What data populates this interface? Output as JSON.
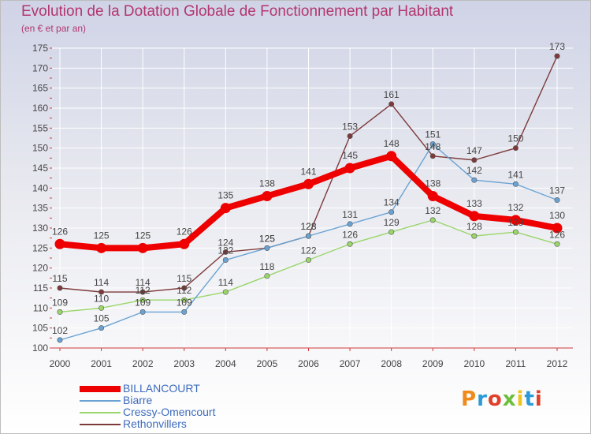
{
  "chart_data": {
    "type": "line",
    "title": "Evolution de la Dotation Globale de Fonctionnement par Habitant",
    "subtitle": "(en € et par an)",
    "xlabel": "",
    "ylabel": "",
    "categories": [
      "2000",
      "2001",
      "2002",
      "2003",
      "2004",
      "2005",
      "2006",
      "2007",
      "2008",
      "2009",
      "2010",
      "2011",
      "2012"
    ],
    "ylim": [
      100,
      175
    ],
    "yticks": [
      100,
      105,
      110,
      115,
      120,
      125,
      130,
      135,
      140,
      145,
      150,
      155,
      160,
      165,
      170,
      175
    ],
    "series": [
      {
        "name": "BILLANCOURT",
        "color": "#ee0000",
        "values": [
          126,
          125,
          125,
          126,
          135,
          138,
          141,
          145,
          148,
          138,
          133,
          132,
          130
        ]
      },
      {
        "name": "Biarre",
        "color": "#6aa3d3",
        "values": [
          102,
          105,
          109,
          109,
          122,
          125,
          128,
          131,
          134,
          151,
          142,
          141,
          137
        ]
      },
      {
        "name": "Cressy-Omencourt",
        "color": "#9ad66a",
        "values": [
          109,
          110,
          112,
          112,
          114,
          118,
          122,
          126,
          129,
          132,
          128,
          129,
          126
        ]
      },
      {
        "name": "Rethonvillers",
        "color": "#7d3a3a",
        "values": [
          115,
          114,
          114,
          115,
          124,
          125,
          128,
          153,
          161,
          148,
          147,
          150,
          173
        ]
      }
    ]
  },
  "logo": {
    "text": "Proxiti",
    "letters": [
      "P",
      "r",
      "o",
      "x",
      "i",
      "t",
      "i"
    ],
    "colors": [
      "#f08a1a",
      "#2a9bd8",
      "#e0402a",
      "#6cbf3a",
      "#f0c419",
      "#2a9bd8",
      "#e0402a"
    ]
  }
}
